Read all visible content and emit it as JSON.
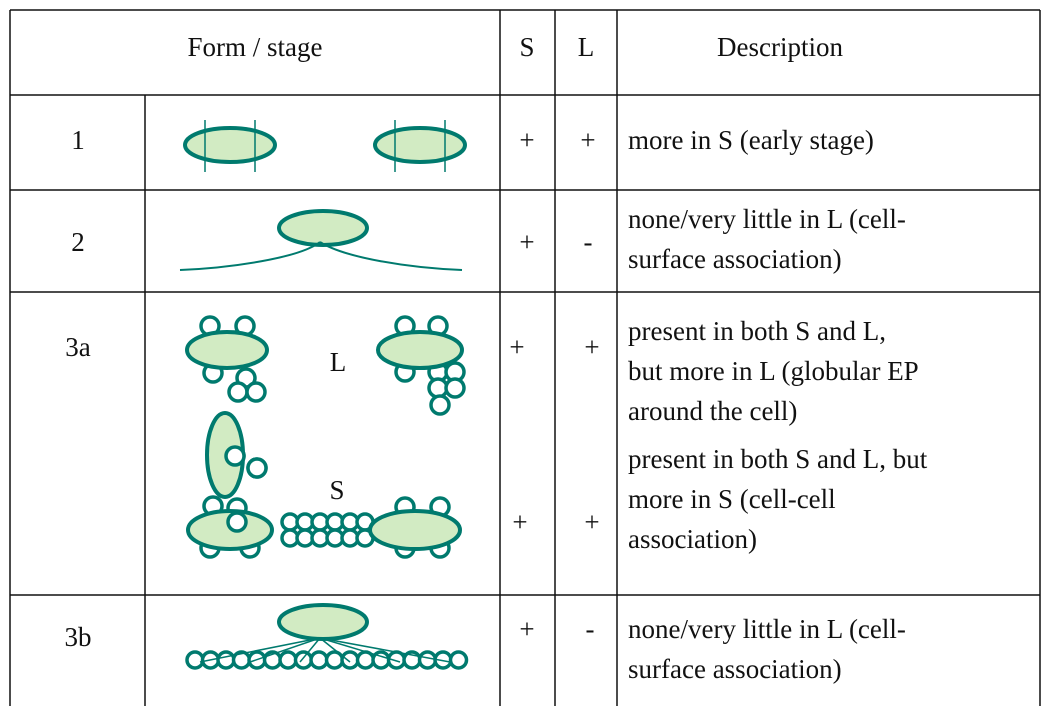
{
  "table": {
    "header": [
      "Form / stage",
      "S",
      "L",
      "Description"
    ],
    "rows": [
      {
        "stage": "1",
        "s": "+",
        "l": "+",
        "description": [
          "more in S (early stage)"
        ]
      },
      {
        "stage": "2",
        "s": "+",
        "l": "-",
        "description": [
          "none/very little in L (cell-",
          "surface association)"
        ]
      },
      {
        "stage": "3a",
        "drawing_labels": [
          "L",
          "S"
        ],
        "parts": [
          {
            "s": "+",
            "l": "+",
            "description": [
              "present in both S and L,",
              "but more in L (globular EP",
              "around the cell)"
            ]
          },
          {
            "s": "+",
            "l": "+",
            "description": [
              "present in both S and L, but",
              "more in S (cell-cell",
              "association)"
            ]
          }
        ]
      },
      {
        "stage": "3b",
        "s": "+",
        "l": "-",
        "description": [
          "none/very little in L (cell-",
          "surface association)"
        ]
      }
    ]
  }
}
